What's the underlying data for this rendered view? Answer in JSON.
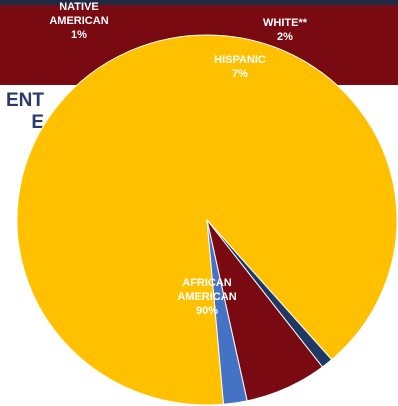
{
  "background_text": [
    "ENT",
    "E"
  ],
  "colors": {
    "header_strip": "#1f2a44",
    "header_band": "#7a0a12",
    "background_text": "#2a3a6b"
  },
  "chart_data": {
    "type": "pie",
    "title": "",
    "slices": [
      {
        "label_lines": [
          "AFRICAN",
          "AMERICAN"
        ],
        "percent_label": "90%",
        "value": 90,
        "color": "#ffc000"
      },
      {
        "label_lines": [
          "NATIVE",
          "AMERICAN"
        ],
        "percent_label": "1%",
        "value": 1,
        "color": "#1f3864"
      },
      {
        "label_lines": [
          "HISPANIC"
        ],
        "percent_label": "7%",
        "value": 7,
        "color": "#7a0a12"
      },
      {
        "label_lines": [
          "WHITE**"
        ],
        "percent_label": "2%",
        "value": 2,
        "color": "#4472c4"
      }
    ]
  }
}
